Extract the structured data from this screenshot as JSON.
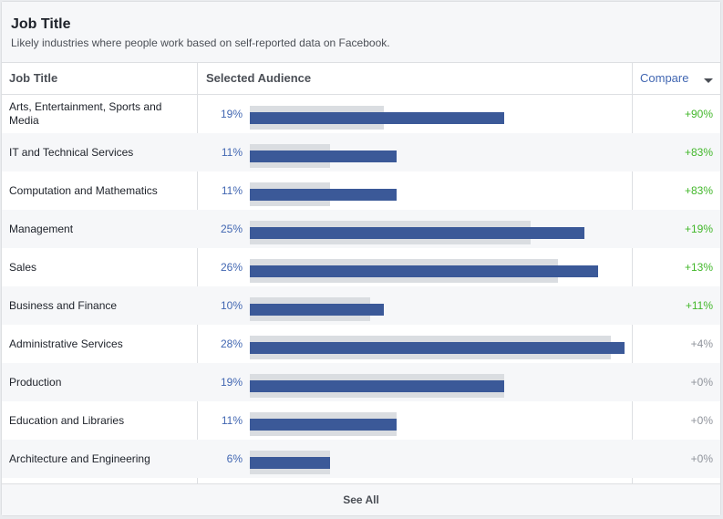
{
  "header": {
    "title": "Job Title",
    "subtitle": "Likely industries where people work based on self-reported data on Facebook."
  },
  "columns": {
    "job": "Job Title",
    "audience": "Selected Audience",
    "compare": "Compare"
  },
  "footer": {
    "see_all": "See All"
  },
  "colors": {
    "selected_bar": "#3b5998",
    "baseline_bar": "#dadde1",
    "positive": "#42b72a",
    "neutral": "#90949c",
    "link": "#4267b2"
  },
  "chart_data": {
    "type": "bar",
    "categories": [
      "Arts, Entertainment, Sports and Media",
      "IT and Technical Services",
      "Computation and Mathematics",
      "Management",
      "Sales",
      "Business and Finance",
      "Administrative Services",
      "Production",
      "Education and Libraries",
      "Architecture and Engineering"
    ],
    "pct_labels": [
      "19%",
      "11%",
      "11%",
      "25%",
      "26%",
      "10%",
      "28%",
      "19%",
      "11%",
      "6%"
    ],
    "compare_labels": [
      "+90%",
      "+83%",
      "+83%",
      "+19%",
      "+13%",
      "+11%",
      "+4%",
      "+0%",
      "+0%",
      "+0%"
    ],
    "series": [
      {
        "values": [
          19,
          11,
          11,
          25,
          26,
          10,
          28,
          19,
          11,
          6
        ]
      },
      {
        "values": [
          10,
          6,
          6,
          21,
          23,
          9,
          27,
          19,
          11,
          6
        ]
      }
    ],
    "xlim": [
      0,
      28
    ]
  }
}
